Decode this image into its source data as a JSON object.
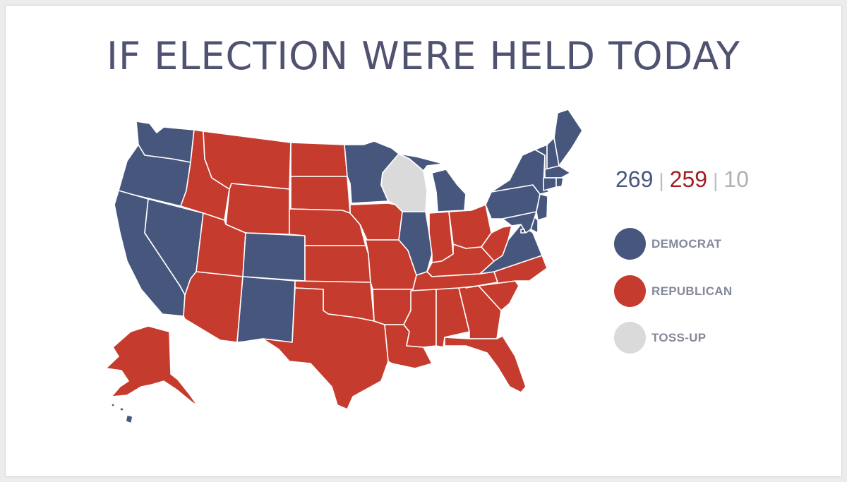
{
  "title": "IF ELECTION WERE HELD TODAY",
  "tally": {
    "democrat": "269",
    "republican": "259",
    "tossup": "10",
    "separator": "|"
  },
  "legend": [
    {
      "label": "DEMOCRAT",
      "color": "#47567d"
    },
    {
      "label": "REPUBLICAN",
      "color": "#c53b2d"
    },
    {
      "label": "TOSS-UP",
      "color": "#dadada"
    }
  ],
  "colors": {
    "democrat": "#47567d",
    "republican": "#c53b2d",
    "tossup": "#dadada",
    "democrat_count_text": "#47567d",
    "republican_count_text": "#a21e22",
    "tossup_count_text": "#b0b0b0"
  },
  "map_data": {
    "democrat": [
      "WA",
      "OR",
      "CA",
      "NV",
      "CO",
      "NM",
      "MN",
      "IL",
      "MI",
      "PA",
      "NY",
      "VT",
      "NH",
      "ME",
      "MA",
      "RI",
      "CT",
      "NJ",
      "DE",
      "MD",
      "VA",
      "DC",
      "HI"
    ],
    "republican": [
      "ID",
      "MT",
      "WY",
      "UT",
      "AZ",
      "ND",
      "SD",
      "NE",
      "KS",
      "OK",
      "TX",
      "IA",
      "MO",
      "AR",
      "LA",
      "IN",
      "OH",
      "KY",
      "TN",
      "MS",
      "AL",
      "GA",
      "FL",
      "SC",
      "NC",
      "WV",
      "AK"
    ],
    "tossup": [
      "WI"
    ]
  }
}
